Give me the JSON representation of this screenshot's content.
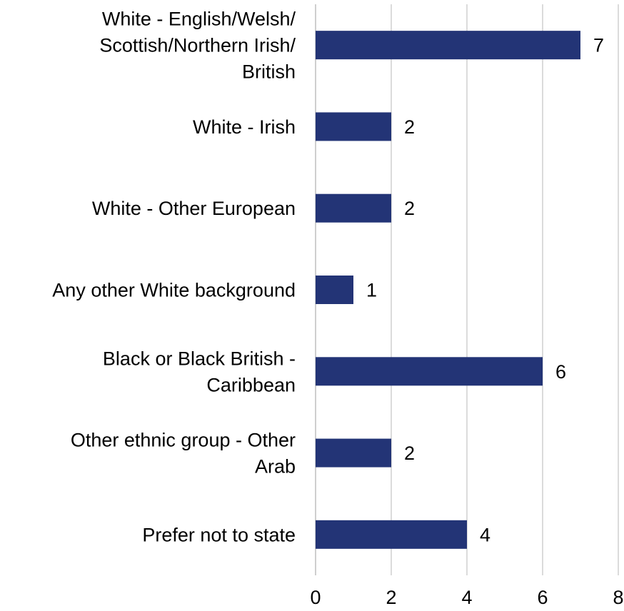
{
  "chart_data": {
    "type": "bar",
    "orientation": "horizontal",
    "categories": [
      [
        "White - English/Welsh/",
        "Scottish/Northern Irish/",
        "British"
      ],
      [
        "White - Irish"
      ],
      [
        "White - Other European"
      ],
      [
        "Any other White background"
      ],
      [
        "Black or Black British -",
        "Caribbean"
      ],
      [
        "Other ethnic group - Other",
        "Arab"
      ],
      [
        "Prefer not to state"
      ]
    ],
    "values": [
      7,
      2,
      2,
      1,
      6,
      2,
      4
    ],
    "value_labels": [
      "7",
      "2",
      "2",
      "1",
      "6",
      "2",
      "4"
    ],
    "xlim": [
      0,
      8
    ],
    "xticks": [
      0,
      2,
      4,
      6,
      8
    ],
    "xtick_labels": [
      "0",
      "2",
      "4",
      "6",
      "8"
    ],
    "grid": "vertical",
    "legend": "none",
    "bar_color": "#233476"
  }
}
